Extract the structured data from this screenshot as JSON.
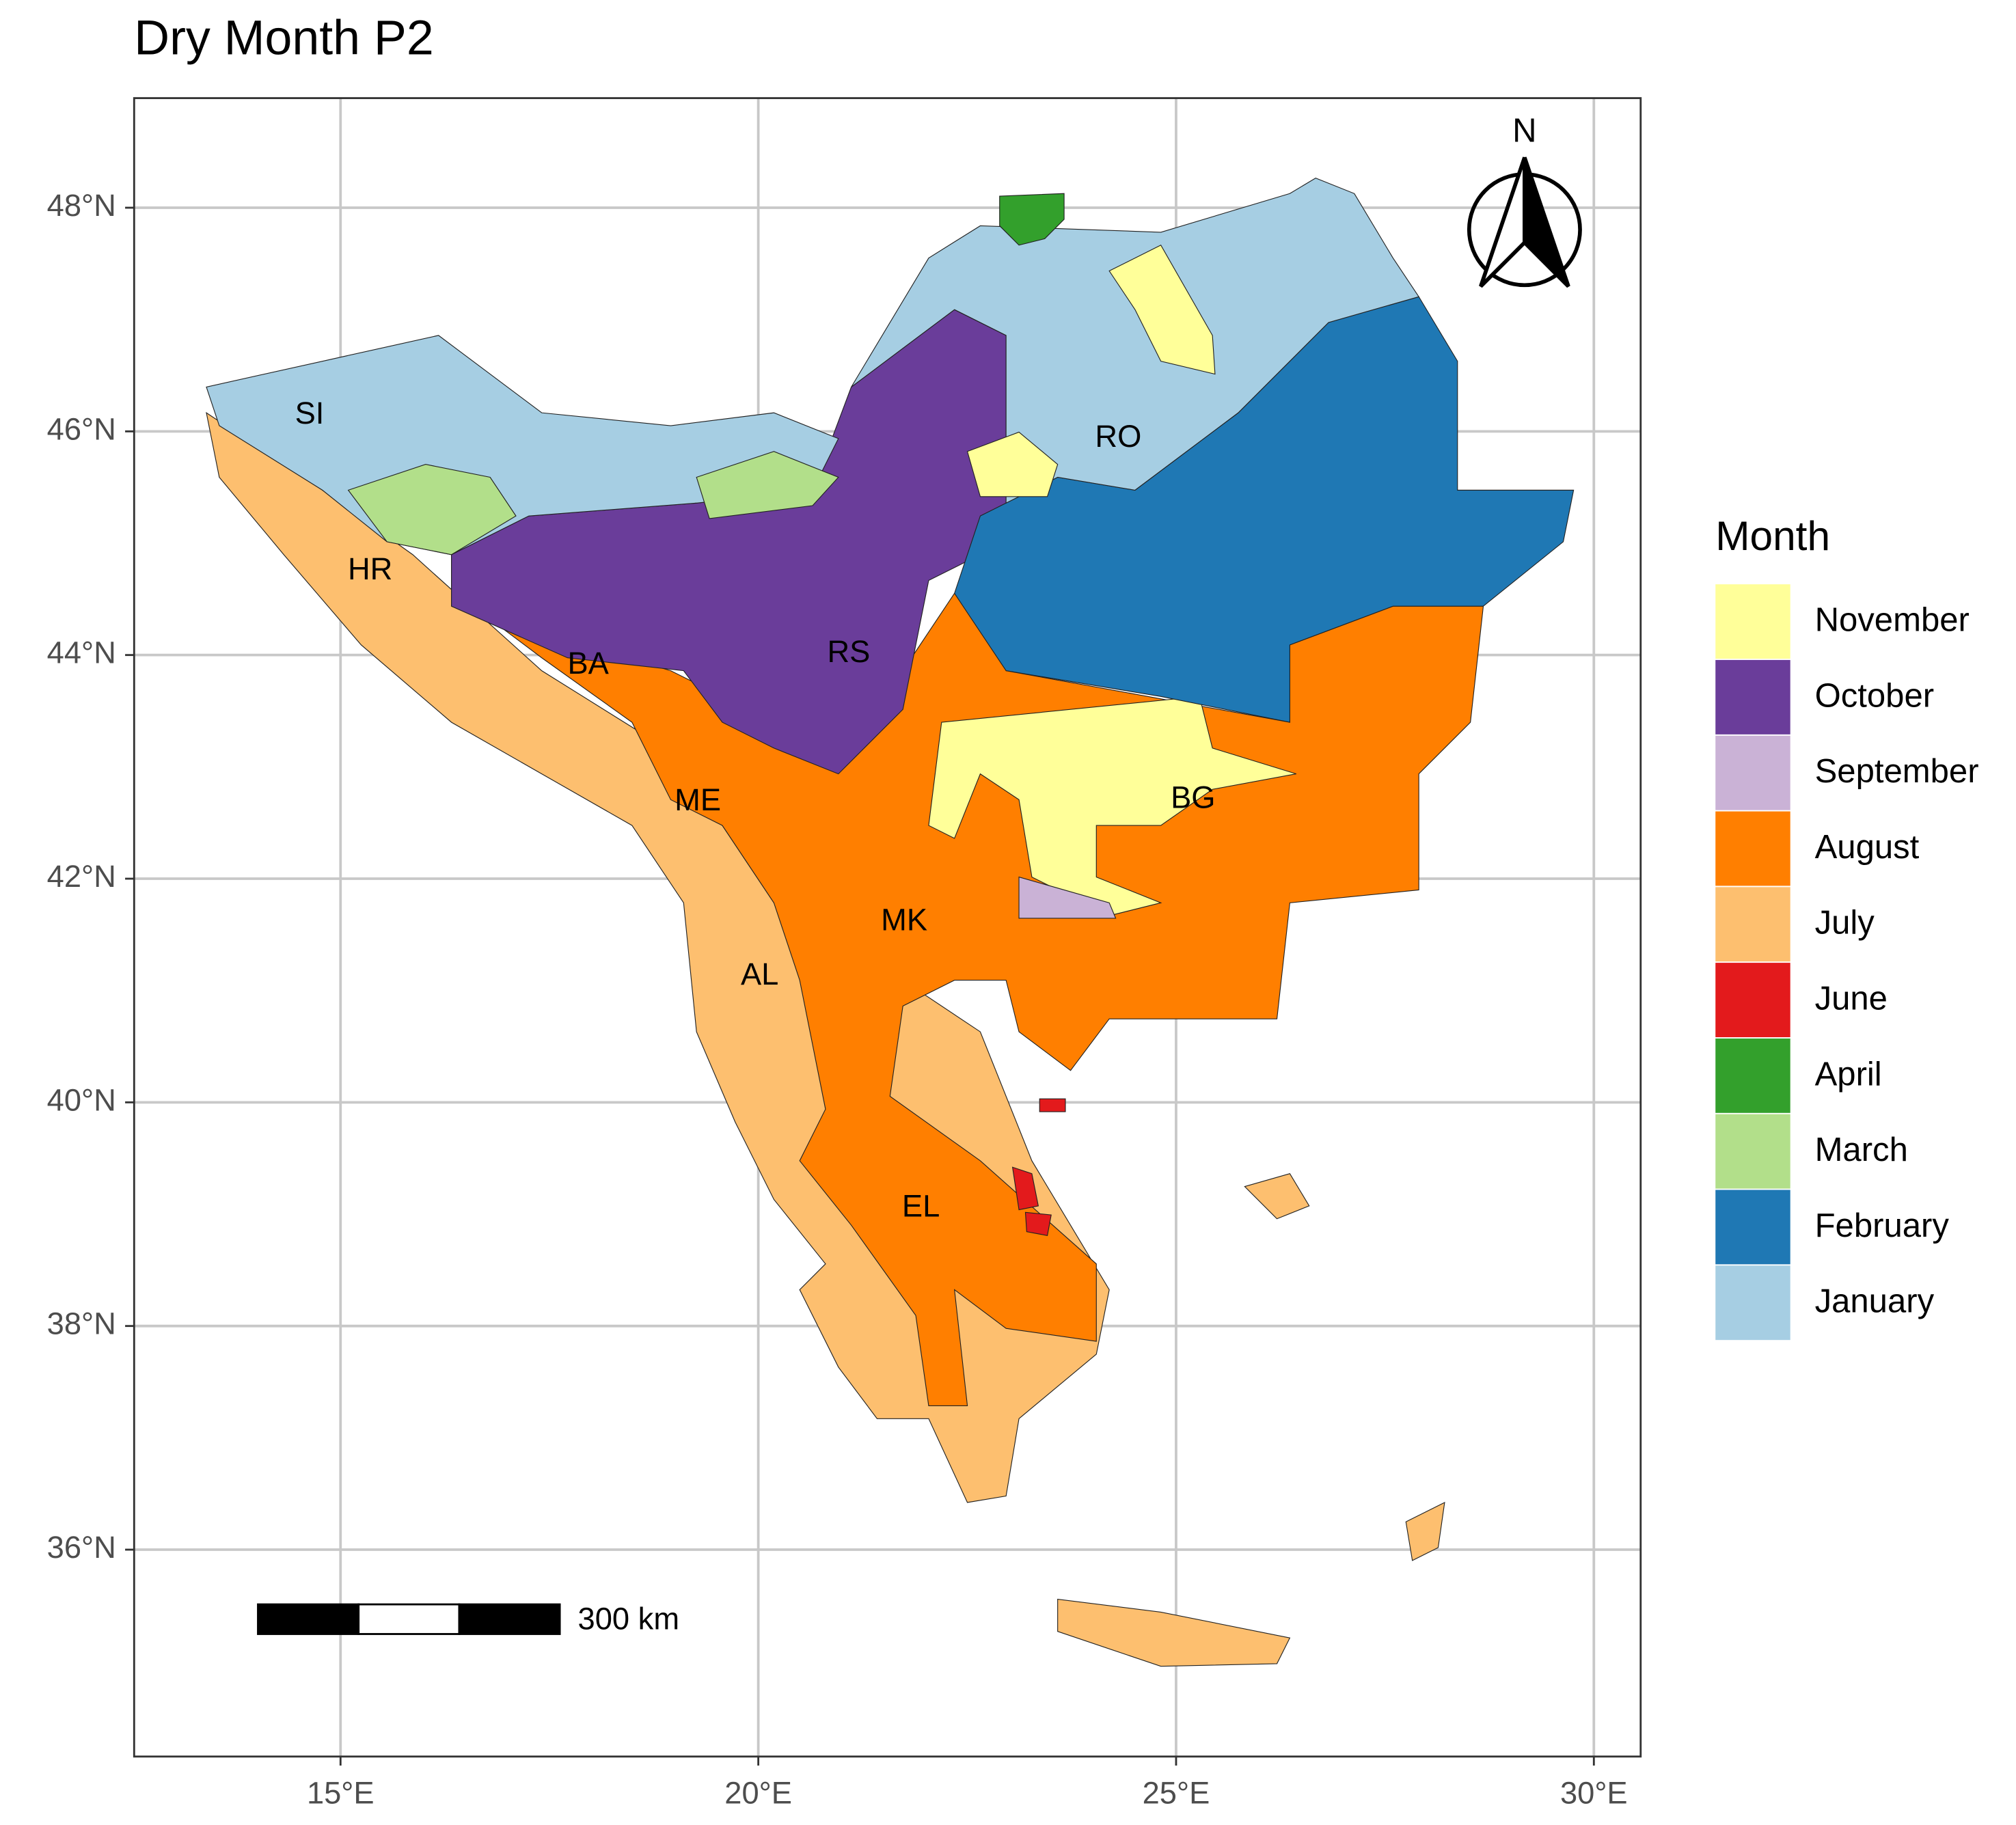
{
  "title": "Dry Month P2",
  "map": {
    "xlim": [
      12.53,
      30.56
    ],
    "ylim": [
      34.15,
      48.98
    ],
    "xticks": [
      {
        "value": 15,
        "label": "15°E"
      },
      {
        "value": 20,
        "label": "20°E"
      },
      {
        "value": 25,
        "label": "25°E"
      },
      {
        "value": 30,
        "label": "30°E"
      }
    ],
    "yticks": [
      {
        "value": 36,
        "label": "36°N"
      },
      {
        "value": 38,
        "label": "38°N"
      },
      {
        "value": 40,
        "label": "40°N"
      },
      {
        "value": 42,
        "label": "42°N"
      },
      {
        "value": 44,
        "label": "44°N"
      },
      {
        "value": 46,
        "label": "46°N"
      },
      {
        "value": 48,
        "label": "48°N"
      }
    ],
    "grid": true
  },
  "legend": {
    "title": "Month",
    "entries": [
      {
        "name": "November",
        "color": "#FFFF99"
      },
      {
        "name": "October",
        "color": "#6A3D9A"
      },
      {
        "name": "September",
        "color": "#CAB2D6"
      },
      {
        "name": "August",
        "color": "#FF7F00"
      },
      {
        "name": "July",
        "color": "#FDBF6F"
      },
      {
        "name": "June",
        "color": "#E31A1C"
      },
      {
        "name": "April",
        "color": "#33A02C"
      },
      {
        "name": "March",
        "color": "#B2DF8A"
      },
      {
        "name": "February",
        "color": "#1F78B4"
      },
      {
        "name": "January",
        "color": "#A6CEE3"
      }
    ]
  },
  "regions": [
    "SI",
    "HR",
    "BA",
    "RS",
    "RO",
    "ME",
    "BG",
    "MK",
    "AL",
    "EL"
  ],
  "north_arrow": "N",
  "scale_bar": "300 km"
}
